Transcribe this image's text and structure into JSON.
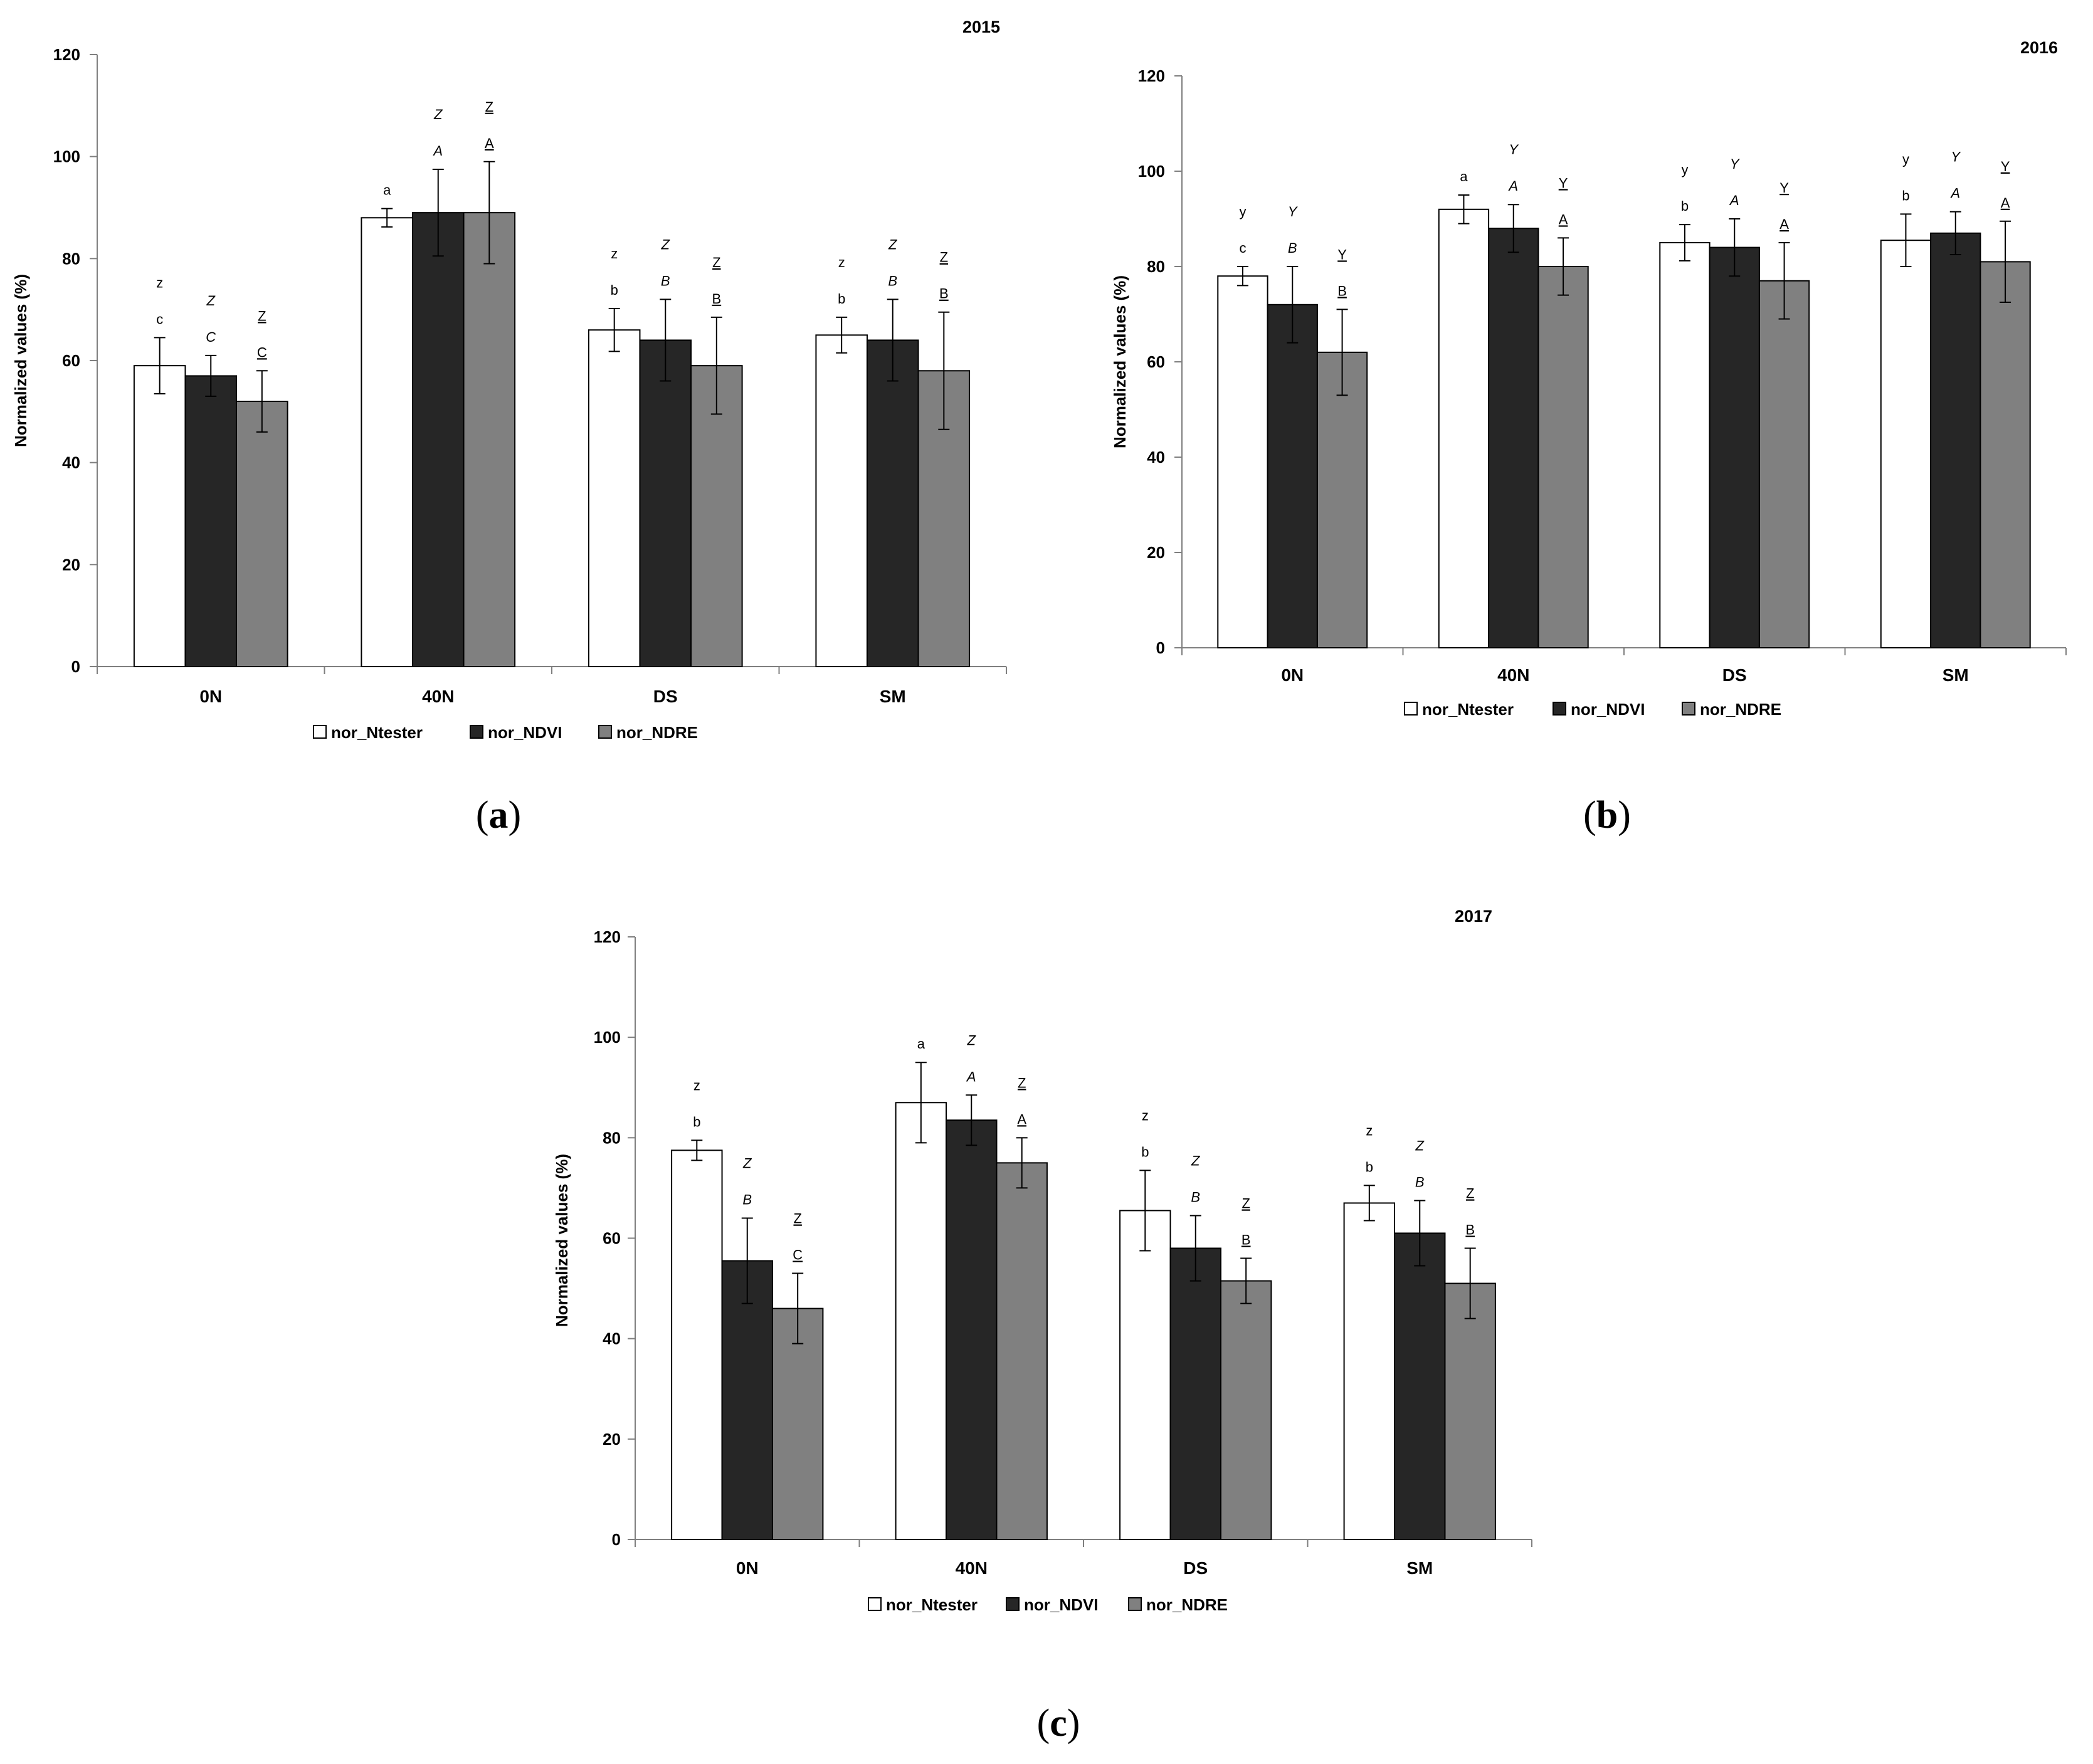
{
  "figure": {
    "series_names": [
      "nor_Ntester",
      "nor_NDVI",
      "nor_NDRE"
    ],
    "series_colors": [
      "#ffffff",
      "#262626",
      "#808080"
    ],
    "bar_stroke": "#000000"
  },
  "chart_data": [
    {
      "type": "bar",
      "panel_label": "a",
      "title": "2015",
      "ylabel": "Normalized values (%)",
      "xlabel": "",
      "ylim": [
        0,
        120
      ],
      "yticks": [
        0,
        20,
        40,
        60,
        80,
        100,
        120
      ],
      "categories": [
        "0N",
        "40N",
        "DS",
        "SM"
      ],
      "series": [
        {
          "name": "nor_Ntester",
          "values": [
            59,
            88,
            66,
            65
          ],
          "errors": [
            5.5,
            1.8,
            4.2,
            3.5
          ],
          "letters": [
            "c",
            "a",
            "b",
            "b"
          ],
          "group_letters": [
            "z",
            "",
            "z",
            "z"
          ]
        },
        {
          "name": "nor_NDVI",
          "values": [
            57,
            89,
            64,
            64
          ],
          "errors": [
            4.0,
            8.5,
            8.0,
            8.0
          ],
          "letters": [
            "C",
            "A",
            "B",
            "B"
          ],
          "group_letters": [
            "Z",
            "Z",
            "Z",
            "Z"
          ]
        },
        {
          "name": "nor_NDRE",
          "values": [
            52,
            89,
            59,
            58
          ],
          "errors": [
            6.0,
            10.0,
            9.5,
            11.5
          ],
          "letters": [
            "C",
            "A",
            "B",
            "B"
          ],
          "group_letters": [
            "Z",
            "Z",
            "Z",
            "Z"
          ]
        }
      ],
      "legend": "bottom"
    },
    {
      "type": "bar",
      "panel_label": "b",
      "title": "2016",
      "ylabel": "Normalized values (%)",
      "xlabel": "",
      "ylim": [
        0,
        120
      ],
      "yticks": [
        0,
        20,
        40,
        60,
        80,
        100,
        120
      ],
      "categories": [
        "0N",
        "40N",
        "DS",
        "SM"
      ],
      "series": [
        {
          "name": "nor_Ntester",
          "values": [
            78,
            92,
            85,
            85.5
          ],
          "errors": [
            2.0,
            3.0,
            3.8,
            5.5
          ],
          "letters": [
            "c",
            "a",
            "b",
            "b"
          ],
          "group_letters": [
            "y",
            "",
            "y",
            "y"
          ]
        },
        {
          "name": "nor_NDVI",
          "values": [
            72,
            88,
            84,
            87
          ],
          "errors": [
            8.0,
            5.0,
            6.0,
            4.5
          ],
          "letters": [
            "B",
            "A",
            "A",
            "A"
          ],
          "group_letters": [
            "Y",
            "Y",
            "Y",
            "Y"
          ]
        },
        {
          "name": "nor_NDRE",
          "values": [
            62,
            80,
            77,
            81
          ],
          "errors": [
            9.0,
            6.0,
            8.0,
            8.5
          ],
          "letters": [
            "B",
            "A",
            "A",
            "A"
          ],
          "group_letters": [
            "Y",
            "Y",
            "Y",
            "Y"
          ]
        }
      ],
      "legend": "bottom"
    },
    {
      "type": "bar",
      "panel_label": "c",
      "title": "2017",
      "ylabel": "Normalized values (%)",
      "xlabel": "",
      "ylim": [
        0,
        120
      ],
      "yticks": [
        0,
        20,
        40,
        60,
        80,
        100,
        120
      ],
      "categories": [
        "0N",
        "40N",
        "DS",
        "SM"
      ],
      "series": [
        {
          "name": "nor_Ntester",
          "values": [
            77.5,
            87,
            65.5,
            67
          ],
          "errors": [
            2.0,
            8.0,
            8.0,
            3.5
          ],
          "letters": [
            "b",
            "a",
            "b",
            "b"
          ],
          "group_letters": [
            "z",
            "",
            "z",
            "z"
          ]
        },
        {
          "name": "nor_NDVI",
          "values": [
            55.5,
            83.5,
            58,
            61
          ],
          "errors": [
            8.5,
            5.0,
            6.5,
            6.5
          ],
          "letters": [
            "B",
            "A",
            "B",
            "B"
          ],
          "group_letters": [
            "Z",
            "Z",
            "Z",
            "Z"
          ]
        },
        {
          "name": "nor_NDRE",
          "values": [
            46,
            75,
            51.5,
            51
          ],
          "errors": [
            7.0,
            5.0,
            4.5,
            7.0
          ],
          "letters": [
            "C",
            "A",
            "B",
            "B"
          ],
          "group_letters": [
            "Z",
            "Z",
            "Z",
            "Z"
          ]
        }
      ],
      "legend": "bottom"
    }
  ]
}
